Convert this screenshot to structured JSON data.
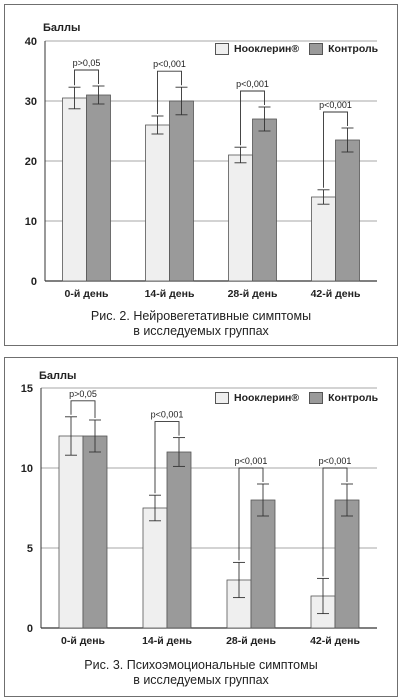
{
  "colors": {
    "nooklerin": "#efefef",
    "control": "#9a9a9a",
    "grid": "#8a8a8a",
    "axis": "#333333"
  },
  "chart_data": [
    {
      "type": "bar",
      "unit_label": "Баллы",
      "categories": [
        "0-й день",
        "14-й день",
        "28-й день",
        "42-й день"
      ],
      "yticks": [
        "0",
        "10",
        "20",
        "30",
        "40"
      ],
      "ylim": [
        0,
        40
      ],
      "series": [
        {
          "name": "Ноо­клерин®",
          "values": [
            30.5,
            26,
            21,
            14
          ],
          "errors": [
            1.8,
            1.5,
            1.3,
            1.2
          ]
        },
        {
          "name": "Контроль",
          "values": [
            31,
            30,
            27,
            23.5
          ],
          "errors": [
            1.5,
            2.3,
            2.0,
            2.0
          ]
        }
      ],
      "annotations": [
        "p>0,05",
        "p<0,001",
        "p<0,001",
        "p<0,001"
      ],
      "legend": "top-right",
      "grid": true,
      "caption": [
        "Рис. 2. Нейровегетативные симптомы",
        "в исследуемых группах"
      ]
    },
    {
      "type": "bar",
      "unit_label": "Баллы",
      "categories": [
        "0-й день",
        "14-й день",
        "28-й день",
        "42-й день"
      ],
      "yticks": [
        "0",
        "5",
        "10",
        "15"
      ],
      "ylim": [
        0,
        15
      ],
      "series": [
        {
          "name": "Ноо­клерин®",
          "values": [
            12,
            7.5,
            3,
            2
          ],
          "errors": [
            1.2,
            0.8,
            1.1,
            1.1
          ]
        },
        {
          "name": "Контроль",
          "values": [
            12,
            11,
            8,
            8
          ],
          "errors": [
            1.0,
            0.9,
            1.0,
            1.0
          ]
        }
      ],
      "annotations": [
        "p>0,05",
        "p<0,001",
        "p<0,001",
        "p<0,001"
      ],
      "legend": "top-right",
      "grid": true,
      "caption": [
        "Рис. 3. Психоэмоциональные симптомы",
        "в исследуемых группах"
      ]
    }
  ]
}
